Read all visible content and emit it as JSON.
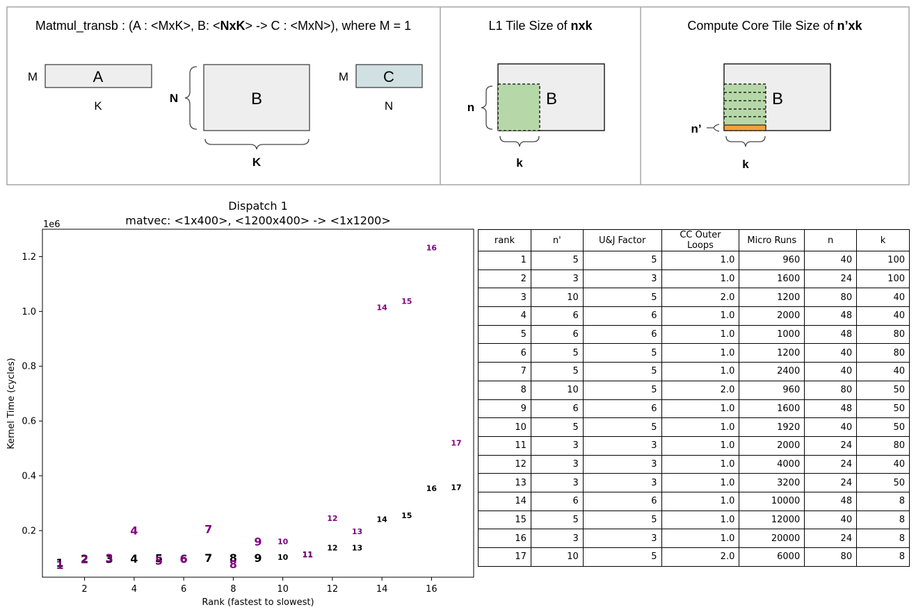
{
  "top_panels": {
    "matmul": {
      "title_parts": [
        {
          "text": "Matmul_transb : (A : <MxK>, B: <",
          "bold": false
        },
        {
          "text": "NxK",
          "bold": true
        },
        {
          "text": "> -> C : <MxN>), where M = 1",
          "bold": false
        }
      ],
      "a_label": "A",
      "a_row_label": "M",
      "a_col_label": "K",
      "b_label": "B",
      "b_row_label": "N",
      "b_col_label": "K",
      "c_label": "C",
      "c_row_label": "M",
      "c_col_label": "N"
    },
    "l1": {
      "title_parts": [
        {
          "text": "L1 Tile Size of ",
          "bold": false
        },
        {
          "text": "nxk",
          "bold": true
        }
      ],
      "b_label": "B",
      "n_label": "n",
      "k_label": "k"
    },
    "cc": {
      "title_parts": [
        {
          "text": "Compute Core Tile Size of ",
          "bold": false
        },
        {
          "text": "n’xk",
          "bold": true
        }
      ],
      "b_label": "B",
      "n_label": "n’",
      "k_label": "k"
    },
    "colors": {
      "matrix_fill": "#eeeeee",
      "c_fill": "#d0e0e3",
      "tile_fill": "#b6d7a8",
      "cc_fill": "#f6a13a"
    }
  },
  "chart_data": {
    "type": "scatter",
    "title": "Dispatch 1",
    "subtitle": "matvec: <1x400>, <1200x400> -> <1x1200>",
    "xlabel": "Rank (fastest to slowest)",
    "ylabel": "Kernel Time (cycles)",
    "y_offset_label": "1e6",
    "xlim": [
      0.3,
      17.7
    ],
    "ylim": [
      0.03,
      1.3
    ],
    "xticks": [
      2,
      4,
      6,
      8,
      10,
      12,
      14,
      16
    ],
    "yticks": [
      0.2,
      0.4,
      0.6,
      0.8,
      1.0,
      1.2
    ],
    "marker": "rank number",
    "series": [
      {
        "color": "#000000",
        "values": [
          0.082,
          0.098,
          0.096,
          0.098,
          0.099,
          0.098,
          0.1,
          0.1,
          0.1,
          0.103,
          0.113,
          0.138,
          0.138,
          0.241,
          0.256,
          0.355,
          0.358
        ]
      },
      {
        "color": "#800080",
        "values": [
          0.075,
          0.095,
          0.1,
          0.2,
          0.09,
          0.096,
          0.206,
          0.078,
          0.16,
          0.161,
          0.112,
          0.245,
          0.197,
          1.015,
          1.037,
          1.233,
          0.52
        ]
      }
    ],
    "colors": {
      "black_series": "#000000",
      "purple_series": "#800080"
    }
  },
  "table": {
    "columns": [
      "rank",
      "n'",
      "U&J Factor",
      "CC Outer Loops",
      "Micro Runs",
      "n",
      "k"
    ],
    "rows": [
      [
        "1",
        "5",
        "5",
        "1.0",
        "960",
        "40",
        "100"
      ],
      [
        "2",
        "3",
        "3",
        "1.0",
        "1600",
        "24",
        "100"
      ],
      [
        "3",
        "10",
        "5",
        "2.0",
        "1200",
        "80",
        "40"
      ],
      [
        "4",
        "6",
        "6",
        "1.0",
        "2000",
        "48",
        "40"
      ],
      [
        "5",
        "6",
        "6",
        "1.0",
        "1000",
        "48",
        "80"
      ],
      [
        "6",
        "5",
        "5",
        "1.0",
        "1200",
        "40",
        "80"
      ],
      [
        "7",
        "5",
        "5",
        "1.0",
        "2400",
        "40",
        "40"
      ],
      [
        "8",
        "10",
        "5",
        "2.0",
        "960",
        "80",
        "50"
      ],
      [
        "9",
        "6",
        "6",
        "1.0",
        "1600",
        "48",
        "50"
      ],
      [
        "10",
        "5",
        "5",
        "1.0",
        "1920",
        "40",
        "50"
      ],
      [
        "11",
        "3",
        "3",
        "1.0",
        "2000",
        "24",
        "80"
      ],
      [
        "12",
        "3",
        "3",
        "1.0",
        "4000",
        "24",
        "40"
      ],
      [
        "13",
        "3",
        "3",
        "1.0",
        "3200",
        "24",
        "50"
      ],
      [
        "14",
        "6",
        "6",
        "1.0",
        "10000",
        "48",
        "8"
      ],
      [
        "15",
        "5",
        "5",
        "1.0",
        "12000",
        "40",
        "8"
      ],
      [
        "16",
        "3",
        "3",
        "1.0",
        "20000",
        "24",
        "8"
      ],
      [
        "17",
        "10",
        "5",
        "2.0",
        "6000",
        "80",
        "8"
      ]
    ]
  }
}
